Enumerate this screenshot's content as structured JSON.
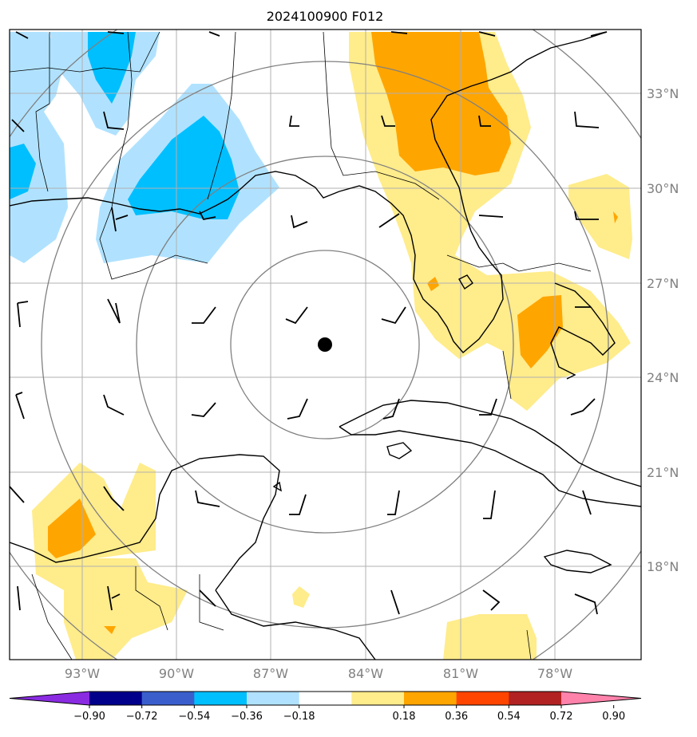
{
  "title": "2024100900 F012",
  "map": {
    "lat_labels": [
      "33°N",
      "30°N",
      "27°N",
      "24°N",
      "21°N",
      "18°N"
    ],
    "lon_labels": [
      "93°W",
      "90°W",
      "87°W",
      "84°W",
      "81°W",
      "78°W"
    ],
    "center_marker": "storm-center-dot",
    "range_rings": 4,
    "graticule": true
  },
  "colorbar": {
    "colors": [
      "#8a2be2",
      "#00008b",
      "#3a5fcd",
      "#00bfff",
      "#b0e2ff",
      "#ffffff",
      "#ffec8b",
      "#ffa500",
      "#ff4500",
      "#b22222",
      "#ff82ab"
    ],
    "tick_labels": [
      "−0.90",
      "−0.72",
      "−0.54",
      "−0.36",
      "−0.18",
      "0.18",
      "0.36",
      "0.54",
      "0.72",
      "0.90"
    ]
  }
}
